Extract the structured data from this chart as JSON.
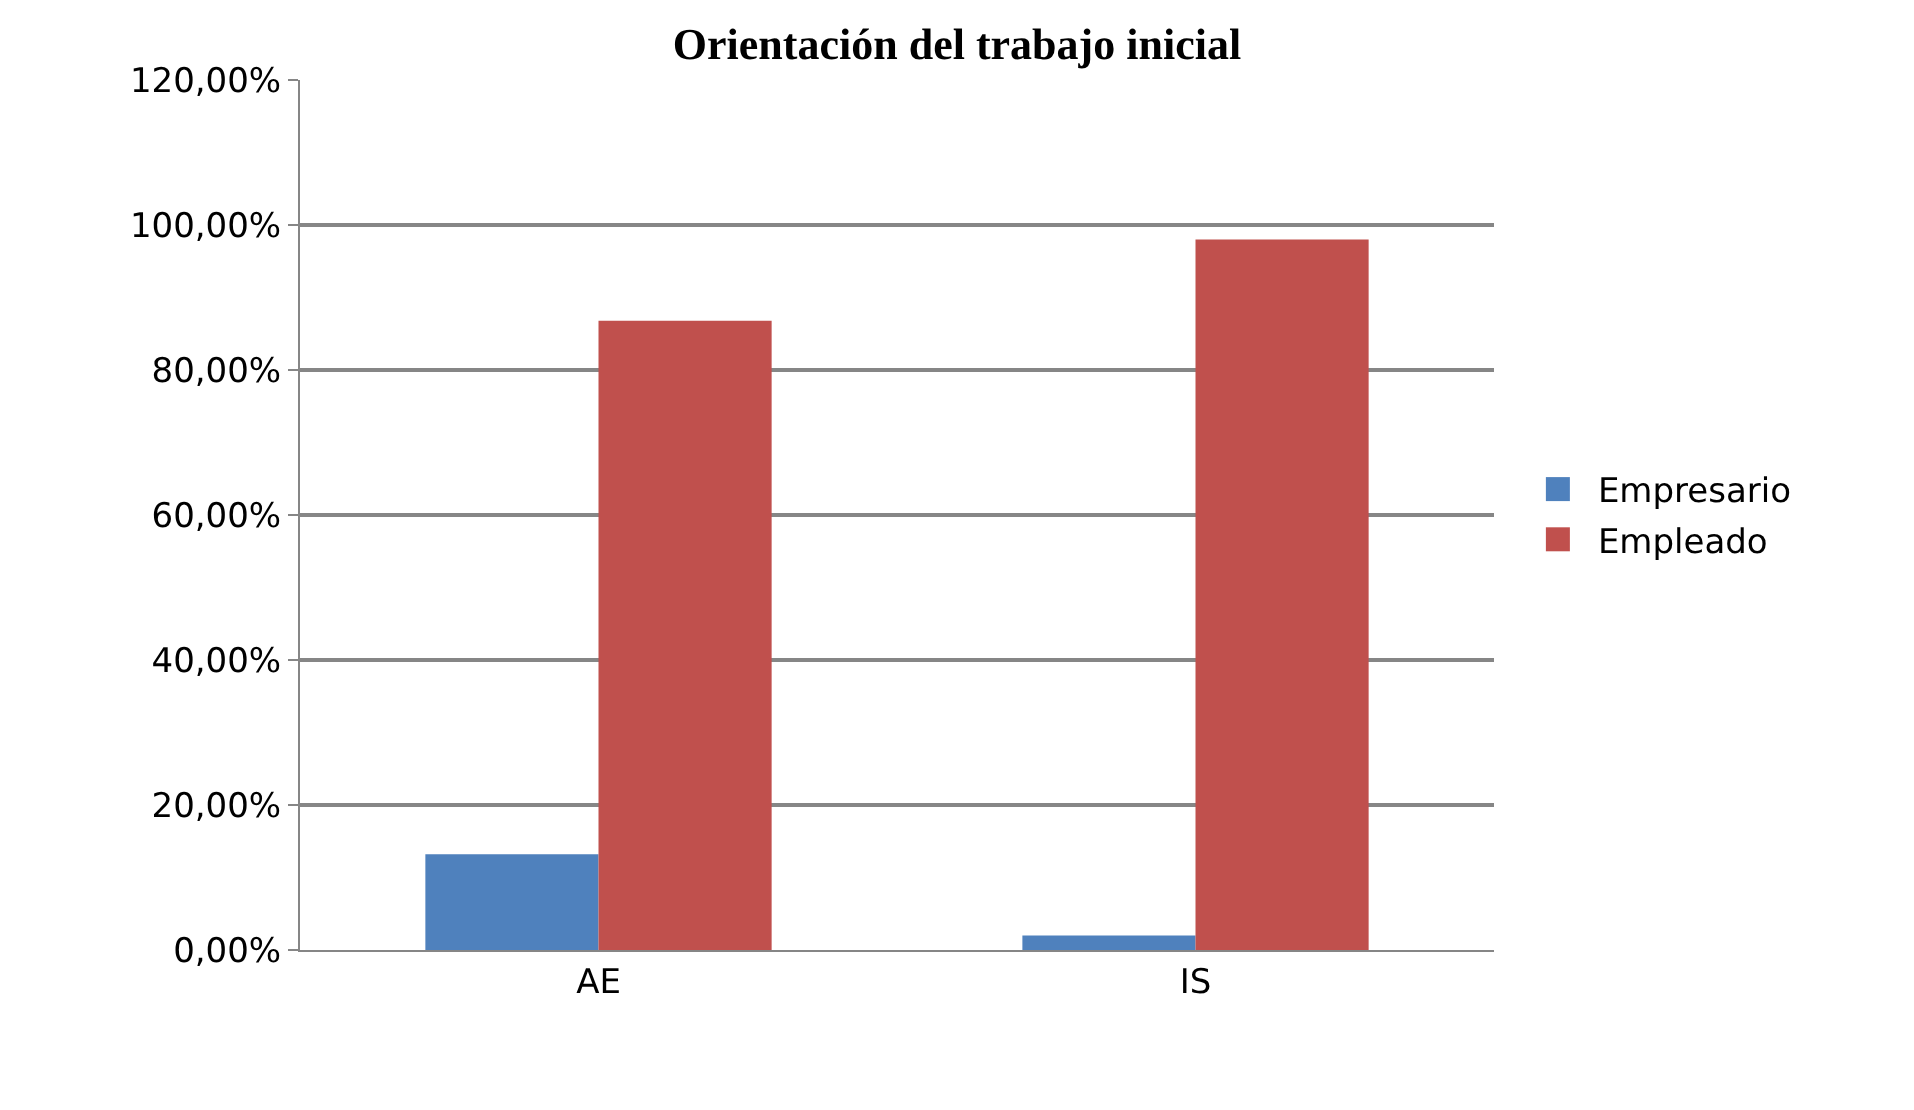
{
  "chart_data": {
    "type": "bar",
    "title": "Orientación del trabajo inicial",
    "categories": [
      "AE",
      "IS"
    ],
    "series": [
      {
        "name": "Empresario",
        "color": "#4f81bd",
        "values": [
          13.2,
          2
        ]
      },
      {
        "name": "Empleado",
        "color": "#c0504d",
        "values": [
          86.8,
          98
        ]
      }
    ],
    "ylim": [
      0,
      120
    ],
    "yticks": [
      {
        "value": 0,
        "label": "0,00%"
      },
      {
        "value": 20,
        "label": "20,00%"
      },
      {
        "value": 40,
        "label": "40,00%"
      },
      {
        "value": 60,
        "label": "60,00%"
      },
      {
        "value": 80,
        "label": "80,00%"
      },
      {
        "value": 100,
        "label": "100,00%"
      },
      {
        "value": 120,
        "label": "120,00%"
      }
    ],
    "grid": "y",
    "legend": "right"
  }
}
